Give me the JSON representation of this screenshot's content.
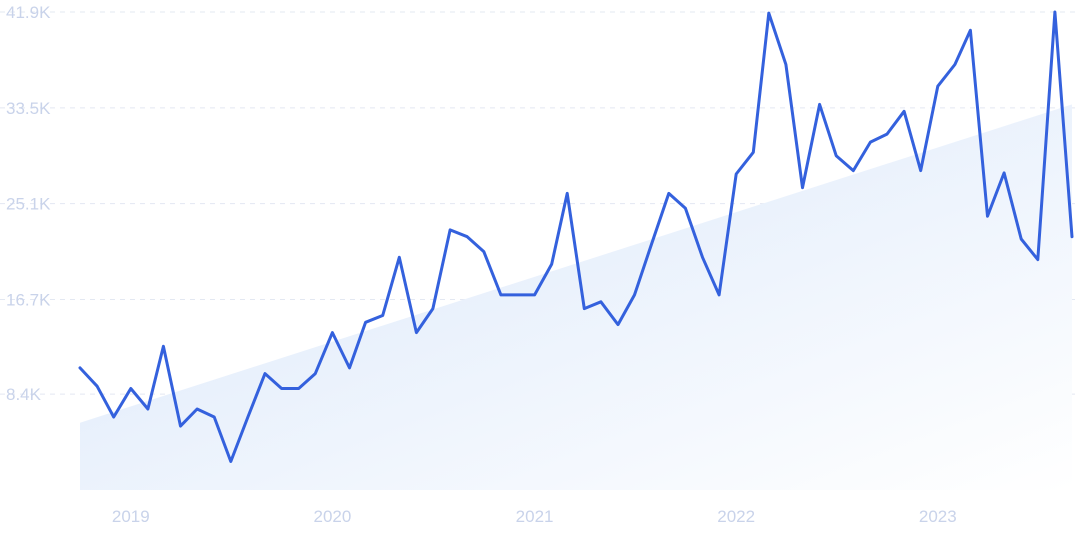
{
  "chart_data": {
    "type": "line",
    "title": "",
    "xlabel": "",
    "ylabel": "",
    "ylim": [
      0,
      41900
    ],
    "y_ticks": [
      "8.4K",
      "16.7K",
      "25.1K",
      "33.5K",
      "41.9K"
    ],
    "y_tick_values": [
      8400,
      16700,
      25100,
      33500,
      41900
    ],
    "x_ticks": [
      "2019",
      "2020",
      "2021",
      "2022",
      "2023"
    ],
    "x_tick_dates": [
      "2019-01-01",
      "2020-01-01",
      "2021-01-01",
      "2022-01-01",
      "2023-01-01"
    ],
    "x_range": [
      "2018-10-01",
      "2023-09-01"
    ],
    "grid": true,
    "legend": "none",
    "line_color": "#3461dd",
    "trend_fill_color": "#dbe8fb",
    "series": [
      {
        "x": [
          "2018-10",
          "2018-11",
          "2018-12",
          "2019-01",
          "2019-02",
          "2019-03",
          "2019-04",
          "2019-05",
          "2019-06",
          "2019-07",
          "2019-08",
          "2019-09",
          "2019-10",
          "2019-11",
          "2019-12",
          "2020-01",
          "2020-02",
          "2020-03",
          "2020-04",
          "2020-05",
          "2020-06",
          "2020-07",
          "2020-08",
          "2020-09",
          "2020-10",
          "2020-11",
          "2020-12",
          "2021-01",
          "2021-02",
          "2021-03",
          "2021-04",
          "2021-05",
          "2021-06",
          "2021-07",
          "2021-08",
          "2021-09",
          "2021-10",
          "2021-11",
          "2021-12",
          "2022-01",
          "2022-02",
          "2022-03",
          "2022-04",
          "2022-05",
          "2022-06",
          "2022-07",
          "2022-08",
          "2022-09",
          "2022-10",
          "2022-11",
          "2022-12",
          "2023-01",
          "2023-02",
          "2023-03",
          "2023-04",
          "2023-05",
          "2023-06",
          "2023-07",
          "2023-08",
          "2023-09"
        ],
        "values": [
          10700,
          9100,
          6400,
          8900,
          7100,
          12600,
          5600,
          7100,
          6400,
          2500,
          6400,
          10200,
          8900,
          8900,
          10200,
          13800,
          10700,
          14700,
          15300,
          20400,
          13800,
          15900,
          22800,
          22200,
          20900,
          17100,
          17100,
          17100,
          19800,
          26000,
          15900,
          16500,
          14500,
          17100,
          21600,
          26000,
          24700,
          20400,
          17100,
          27700,
          29600,
          41800,
          37300,
          26500,
          33800,
          29300,
          28000,
          30500,
          31200,
          33200,
          28000,
          35400,
          37300,
          40300,
          24000,
          27800,
          22000,
          20200,
          41900,
          22200
        ]
      }
    ],
    "trend": {
      "start_value": 5900,
      "end_value": 33800
    }
  }
}
